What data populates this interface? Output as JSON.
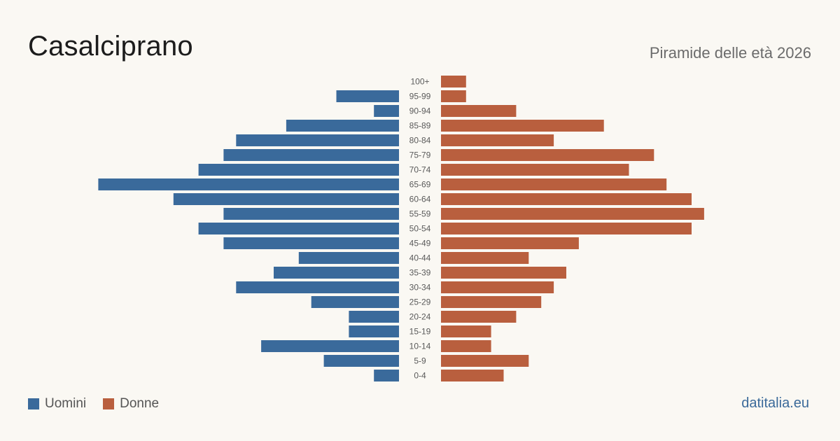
{
  "header": {
    "title": "Casalciprano",
    "subtitle": "Piramide delle età 2026"
  },
  "legend": {
    "male_label": "Uomini",
    "female_label": "Donne"
  },
  "source": "datitalia.eu",
  "colors": {
    "male": "#3a6a9b",
    "female": "#b95f3e"
  },
  "chart_data": {
    "type": "bar",
    "orientation": "horizontal-pyramid",
    "title": "Casalciprano",
    "subtitle": "Piramide delle età 2026",
    "categories": [
      "100+",
      "95-99",
      "90-94",
      "85-89",
      "80-84",
      "75-79",
      "70-74",
      "65-69",
      "60-64",
      "55-59",
      "50-54",
      "45-49",
      "40-44",
      "35-39",
      "30-34",
      "25-29",
      "20-24",
      "15-19",
      "10-14",
      "5-9",
      "0-4"
    ],
    "series": [
      {
        "name": "Uomini",
        "values": [
          0,
          5,
          2,
          9,
          13,
          14,
          16,
          24,
          18,
          14,
          16,
          14,
          8,
          10,
          13,
          7,
          4,
          4,
          11,
          6,
          2
        ]
      },
      {
        "name": "Donne",
        "values": [
          2,
          2,
          6,
          13,
          9,
          17,
          15,
          18,
          20,
          21,
          20,
          11,
          7,
          10,
          9,
          8,
          6,
          4,
          4,
          7,
          5
        ]
      }
    ],
    "grid": false,
    "legend_position": "bottom-left"
  }
}
